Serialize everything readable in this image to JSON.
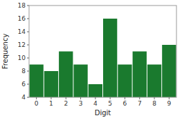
{
  "chart_data": {
    "type": "bar",
    "x": [
      0,
      1,
      2,
      3,
      4,
      5,
      6,
      7,
      8,
      9
    ],
    "values": [
      9,
      8,
      11,
      9,
      6,
      16,
      9,
      11,
      9,
      12
    ],
    "color": "#1a7a2e",
    "x_label": "Digit",
    "y_label": "Frequency",
    "xlim": [
      -0.5,
      9.5
    ],
    "xticks": [
      0,
      1,
      2,
      3,
      4,
      5,
      6,
      7,
      8,
      9
    ],
    "ylim": [
      4,
      18
    ],
    "yticks": [
      4,
      6,
      8,
      10,
      12,
      14,
      16,
      18
    ],
    "grid": false
  }
}
